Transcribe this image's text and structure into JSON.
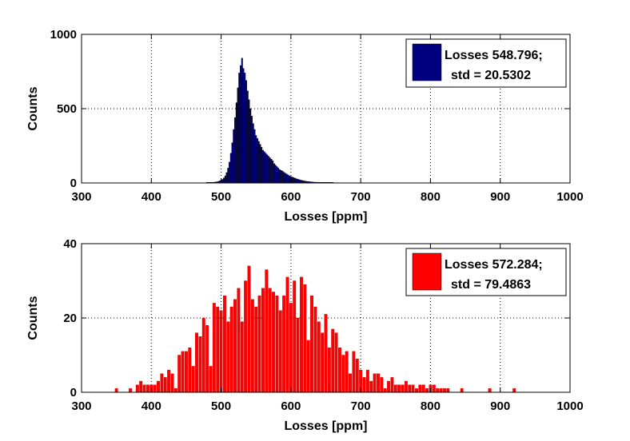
{
  "chart_data": [
    {
      "type": "bar",
      "title": "",
      "xlabel": "Losses [ppm]",
      "ylabel": "Counts",
      "xlim": [
        300,
        1000
      ],
      "ylim": [
        0,
        1000
      ],
      "xticks": [
        "300",
        "400",
        "500",
        "600",
        "700",
        "800",
        "900",
        "1000"
      ],
      "yticks": [
        "0",
        "500",
        "1000"
      ],
      "grid": true,
      "legend_position": "top-right",
      "legend_lines": [
        "Losses 548.796;",
        "std = 20.5302"
      ],
      "bar_color": "#000080",
      "bar_edge": "#000000",
      "bin_width": 2,
      "x": [
        480,
        482,
        484,
        486,
        488,
        490,
        492,
        494,
        496,
        498,
        500,
        502,
        504,
        506,
        508,
        510,
        512,
        514,
        516,
        518,
        520,
        522,
        524,
        526,
        528,
        530,
        532,
        534,
        536,
        538,
        540,
        542,
        544,
        546,
        548,
        550,
        552,
        554,
        556,
        558,
        560,
        562,
        564,
        566,
        568,
        570,
        572,
        574,
        576,
        578,
        580,
        582,
        584,
        586,
        588,
        590,
        592,
        594,
        596,
        598,
        600,
        602,
        604,
        606,
        608,
        610,
        612,
        614,
        616,
        618,
        620,
        622,
        624,
        626,
        628,
        630,
        632,
        634,
        636,
        638,
        640,
        642,
        644,
        646,
        648,
        650,
        652,
        654,
        656,
        658,
        660
      ],
      "values": [
        1,
        2,
        2,
        3,
        4,
        5,
        6,
        8,
        10,
        14,
        18,
        24,
        34,
        48,
        70,
        100,
        140,
        200,
        270,
        360,
        440,
        540,
        640,
        740,
        790,
        840,
        770,
        740,
        690,
        620,
        560,
        500,
        450,
        400,
        360,
        320,
        300,
        280,
        260,
        240,
        220,
        210,
        200,
        190,
        180,
        170,
        160,
        150,
        130,
        120,
        110,
        100,
        90,
        85,
        80,
        72,
        66,
        60,
        54,
        48,
        44,
        40,
        36,
        32,
        28,
        25,
        22,
        19,
        17,
        15,
        13,
        11,
        10,
        9,
        8,
        7,
        6,
        5,
        5,
        4,
        4,
        3,
        3,
        3,
        2,
        2,
        2,
        1,
        1,
        1,
        1
      ]
    },
    {
      "type": "bar",
      "title": "",
      "xlabel": "Losses [ppm]",
      "ylabel": "Counts",
      "xlim": [
        300,
        1000
      ],
      "ylim": [
        0,
        40
      ],
      "xticks": [
        "300",
        "400",
        "500",
        "600",
        "700",
        "800",
        "900",
        "1000"
      ],
      "yticks": [
        "0",
        "20",
        "40"
      ],
      "grid": true,
      "legend_position": "top-right",
      "legend_lines": [
        "Losses 572.284;",
        "std = 79.4863"
      ],
      "bar_color": "#ff0000",
      "bar_edge": "#cc0000",
      "bin_width": 5,
      "x": [
        350,
        370,
        380,
        385,
        390,
        395,
        400,
        405,
        410,
        415,
        420,
        425,
        430,
        435,
        440,
        445,
        450,
        455,
        460,
        465,
        470,
        475,
        480,
        485,
        490,
        495,
        500,
        505,
        510,
        515,
        520,
        525,
        530,
        535,
        540,
        545,
        550,
        555,
        560,
        565,
        570,
        575,
        580,
        585,
        590,
        595,
        600,
        605,
        610,
        615,
        620,
        625,
        630,
        635,
        640,
        645,
        650,
        655,
        660,
        665,
        670,
        675,
        680,
        685,
        690,
        695,
        700,
        705,
        710,
        715,
        720,
        725,
        730,
        735,
        740,
        745,
        750,
        755,
        760,
        765,
        770,
        775,
        780,
        785,
        790,
        795,
        800,
        805,
        810,
        815,
        820,
        825,
        845,
        885,
        920
      ],
      "values": [
        1,
        1,
        2,
        3,
        2,
        2,
        2,
        2,
        3,
        5,
        4,
        6,
        5,
        1,
        10,
        11,
        11,
        12,
        7,
        16,
        15,
        20,
        18,
        7,
        24,
        23,
        22,
        26,
        19,
        23,
        25,
        28,
        19,
        30,
        34,
        25,
        23,
        26,
        28,
        33,
        28,
        27,
        26,
        22,
        26,
        31,
        24,
        30,
        20,
        31,
        29,
        14,
        26,
        23,
        19,
        16,
        21,
        12,
        17,
        16,
        12,
        10,
        11,
        5,
        11,
        9,
        6,
        4,
        6,
        3,
        5,
        5,
        4,
        1,
        3,
        4,
        2,
        2,
        2,
        3,
        2,
        2,
        1,
        2,
        2,
        1,
        2,
        2,
        1,
        1,
        1,
        1,
        1,
        1,
        1
      ]
    }
  ]
}
